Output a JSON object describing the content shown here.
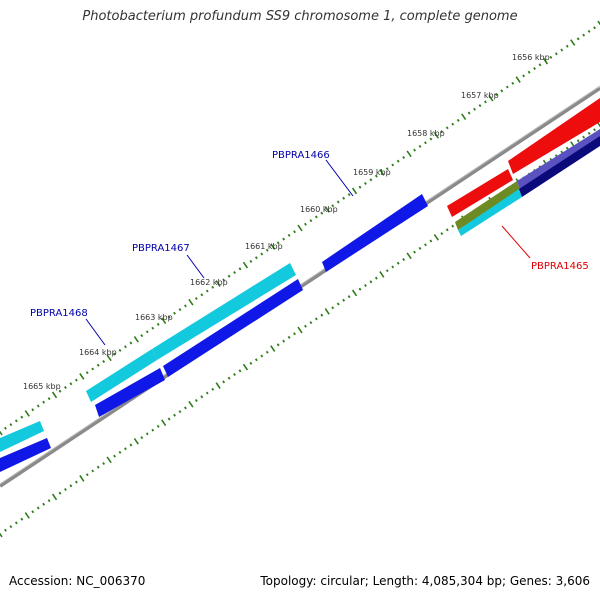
{
  "title": "Photobacterium profundum SS9 chromosome 1, complete genome",
  "colors": {
    "backbone": "#8a8a8a",
    "tick": "#2e7d1a",
    "kbp_text": "#333333",
    "gene_label": "#0000aa",
    "highlight_label": "#dd0000",
    "blue": "#0f18e6",
    "cyan": "#13c9de",
    "red": "#ee0d0d",
    "purple": "#5a52c0",
    "navy": "#0a0a7a",
    "olive": "#6e8a22"
  },
  "kbp_labels": [
    "1656 kbp",
    "1657 kbp",
    "1658 kbp",
    "1659 kbp",
    "1660 kbp",
    "1661 kbp",
    "1662 kbp",
    "1663 kbp",
    "1664 kbp",
    "1665 kbp"
  ],
  "gene_labels": [
    "PBPRA1465",
    "PBPRA1466",
    "PBPRA1467",
    "PBPRA1468"
  ],
  "footer": {
    "accession": "Accession: NC_006370",
    "stats": "Topology: circular; Length: 4,085,304 bp; Genes: 3,606"
  }
}
